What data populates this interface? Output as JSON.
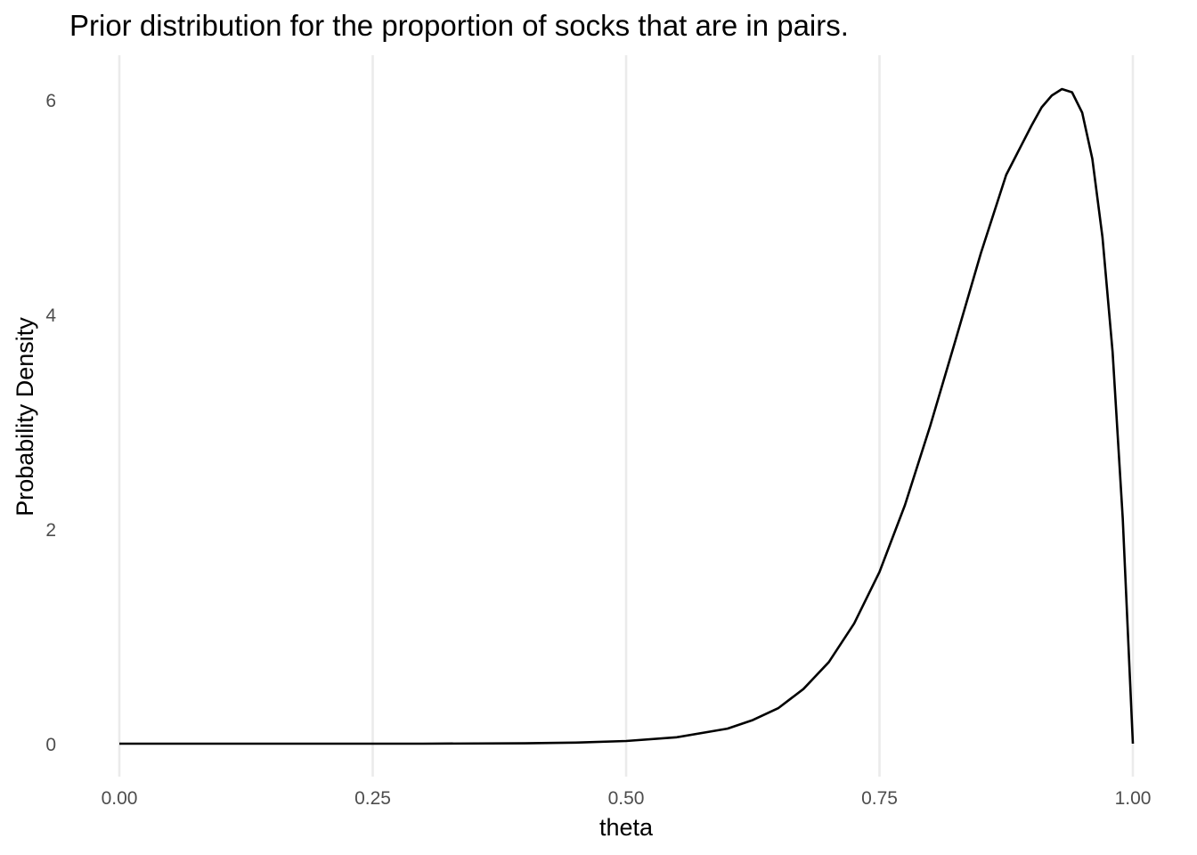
{
  "chart_data": {
    "type": "line",
    "title": "Prior distribution for the proportion of socks that are in pairs.",
    "xlabel": "theta",
    "ylabel": "Probability Density",
    "xlim": [
      0,
      1
    ],
    "ylim": [
      0,
      6.1
    ],
    "x_ticks": [
      0,
      0.25,
      0.5,
      0.75,
      1.0
    ],
    "x_tick_labels": [
      "0.00",
      "0.25",
      "0.50",
      "0.75",
      "1.00"
    ],
    "y_ticks": [
      0,
      2,
      4,
      6
    ],
    "y_tick_labels": [
      "0",
      "2",
      "4",
      "6"
    ],
    "grid": "vertical-major",
    "legend": "none",
    "line_color": "#000000",
    "grid_color": "#ebebeb",
    "series": [
      {
        "x": [
          0,
          0.1,
          0.2,
          0.3,
          0.4,
          0.45,
          0.5,
          0.55,
          0.6,
          0.625,
          0.65,
          0.675,
          0.7,
          0.725,
          0.75,
          0.775,
          0.8,
          0.825,
          0.85,
          0.875,
          0.9,
          0.91,
          0.92,
          0.93,
          0.94,
          0.95,
          0.96,
          0.97,
          0.98,
          0.99,
          1.0
        ],
        "y": [
          0,
          0,
          0,
          0,
          0.004,
          0.01,
          0.025,
          0.06,
          0.14,
          0.22,
          0.33,
          0.51,
          0.76,
          1.12,
          1.6,
          2.22,
          2.96,
          3.76,
          4.57,
          5.3,
          5.76,
          5.93,
          6.04,
          6.1,
          6.07,
          5.88,
          5.45,
          4.72,
          3.65,
          2.1,
          0
        ]
      }
    ]
  }
}
